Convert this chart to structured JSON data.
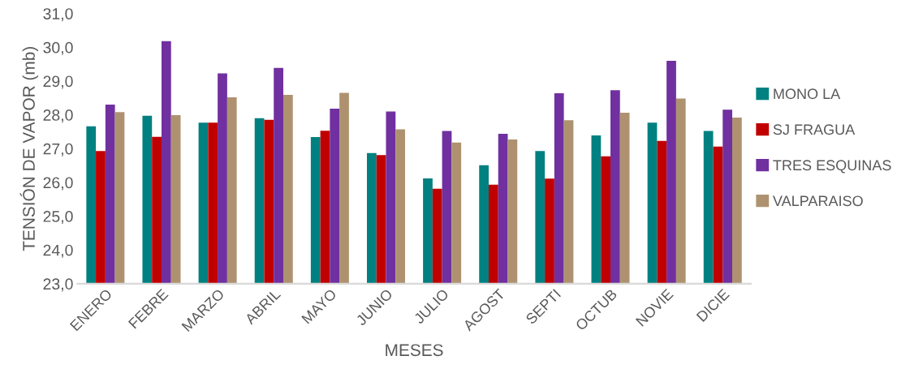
{
  "chart_data": {
    "type": "bar",
    "xlabel": "MESES",
    "ylabel": "TENSIÓN DE VAPOR (mb)",
    "categories": [
      "ENERO",
      "FEBRE",
      "MARZO",
      "ABRIL",
      "MAYO",
      "JUNIO",
      "JULIO",
      "AGOST",
      "SEPTI",
      "OCTUB",
      "NOVIE",
      "DICIE"
    ],
    "series": [
      {
        "name": "MONO LA",
        "color": "#008080",
        "values": [
          27.66,
          27.97,
          27.77,
          27.9,
          27.34,
          26.87,
          26.12,
          26.51,
          26.93,
          27.39,
          27.77,
          27.52
        ]
      },
      {
        "name": "SJ FRAGUA",
        "color": "#c00000",
        "values": [
          26.93,
          27.35,
          27.77,
          27.85,
          27.53,
          26.81,
          25.81,
          25.93,
          26.11,
          26.77,
          27.23,
          27.06
        ]
      },
      {
        "name": "TRES ESQUINAS",
        "color": "#7030a0",
        "values": [
          28.3,
          30.18,
          29.23,
          29.39,
          28.18,
          28.1,
          27.52,
          27.44,
          28.64,
          28.73,
          29.6,
          28.15
        ]
      },
      {
        "name": "VALPARAISO",
        "color": "#ae9270",
        "values": [
          28.08,
          27.99,
          28.52,
          28.59,
          28.65,
          27.57,
          27.18,
          27.27,
          27.84,
          28.06,
          28.48,
          27.92
        ]
      }
    ],
    "ylim": [
      23,
      31
    ],
    "yticks": [
      {
        "value": 23,
        "label": "23,0"
      },
      {
        "value": 24,
        "label": "24,0"
      },
      {
        "value": 25,
        "label": "25,0"
      },
      {
        "value": 26,
        "label": "26,0"
      },
      {
        "value": 27,
        "label": "27,0"
      },
      {
        "value": 28,
        "label": "28,0"
      },
      {
        "value": 29,
        "label": "29,0"
      },
      {
        "value": 30,
        "label": "30,0"
      },
      {
        "value": 31,
        "label": "31,0"
      }
    ],
    "legend": "right",
    "grid": false
  }
}
